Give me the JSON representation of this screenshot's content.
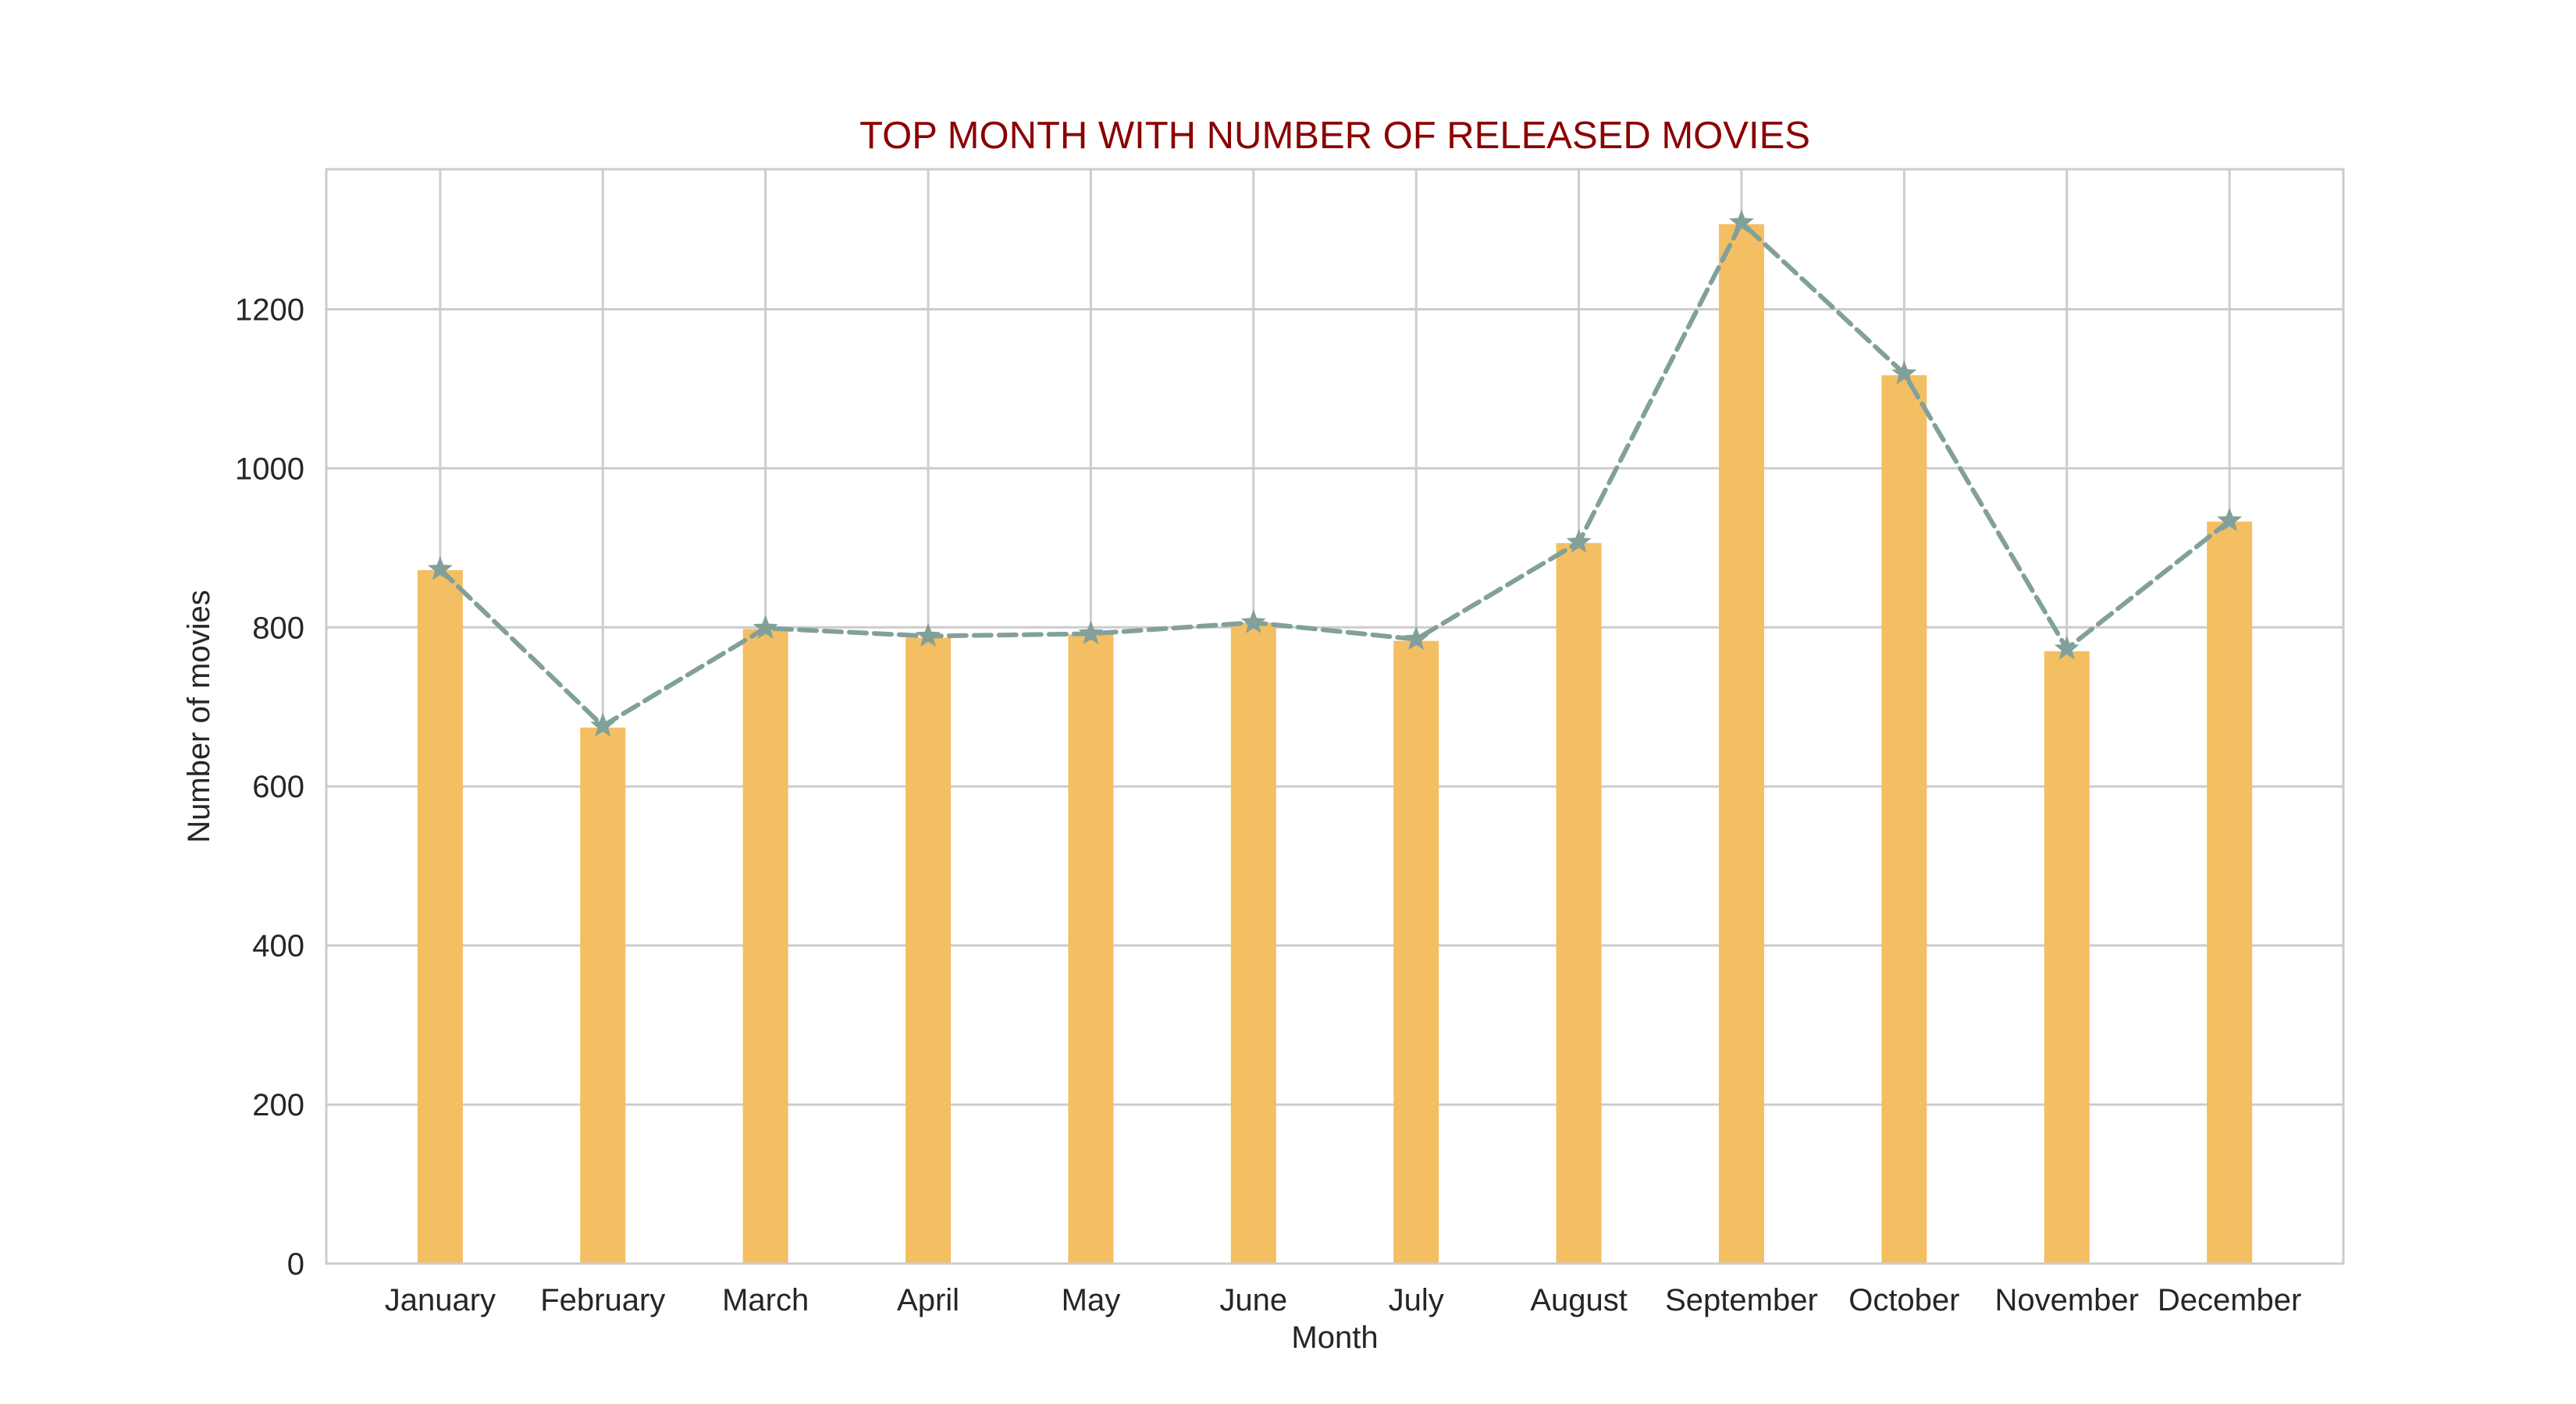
{
  "colors": {
    "bar": "#F4BE62",
    "line": "#82A09A",
    "title": "#8B0000",
    "grid": "#CCCCCC",
    "text": "#262626"
  },
  "chart_data": {
    "type": "bar",
    "title": "TOP MONTH WITH NUMBER OF RELEASED MOVIES",
    "xlabel": "Month",
    "ylabel": "Number of movies",
    "categories": [
      "January",
      "February",
      "March",
      "April",
      "May",
      "June",
      "July",
      "August",
      "September",
      "October",
      "November",
      "December"
    ],
    "values": [
      872,
      674,
      798,
      787,
      791,
      806,
      783,
      906,
      1307,
      1117,
      770,
      933
    ],
    "overlay_line": {
      "style": "dashed",
      "marker": "star",
      "values": [
        873,
        676,
        799,
        789,
        792,
        806,
        785,
        907,
        1309,
        1119,
        773,
        934
      ]
    },
    "ylim": [
      0,
      1376
    ],
    "yticks": [
      0,
      200,
      400,
      600,
      800,
      1000,
      1200
    ],
    "grid": true,
    "legend": "none"
  }
}
